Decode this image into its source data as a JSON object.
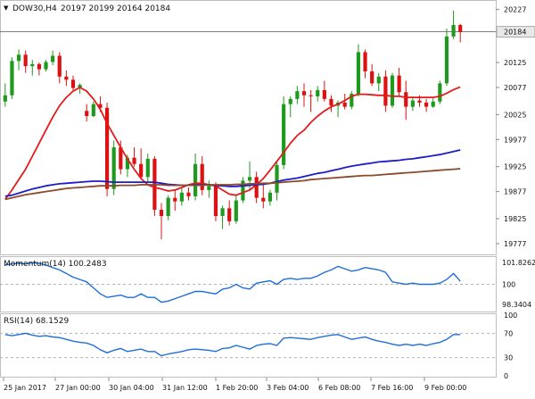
{
  "header": {
    "arrow_glyph": "▼",
    "symbol": "DOW30,H4",
    "ohlc": "20197 20199 20164 20184"
  },
  "colors": {
    "bull_candle": "#1e9a1e",
    "bear_candle": "#dd1111",
    "sma_fast": "#e31b1b",
    "sma_mid": "#1c1cc8",
    "sma_slow": "#8b4a2a",
    "indicator_line": "#1f6fd6",
    "grid_dashed": "#b4b4b4",
    "pane_separator": "#bfbfbf",
    "price_label_bg": "#e8e8e8",
    "text": "#111111"
  },
  "x_axis": {
    "labels": [
      "25 Jan 2017",
      "27 Jan 00:00",
      "30 Jan 04:00",
      "31 Jan 12:00",
      "1 Feb 20:00",
      "3 Feb 04:00",
      "6 Feb 08:00",
      "7 Feb 16:00",
      "9 Feb 00:00"
    ]
  },
  "price_pane": {
    "y_tick_labels": [
      "20227",
      "20184",
      "20125",
      "20077",
      "20025",
      "19977",
      "19925",
      "19877",
      "19825",
      "19777"
    ],
    "current_price_label": "20184",
    "current_price": 20184
  },
  "momentum_pane": {
    "title": "Momentum(14) 100.2483",
    "y_tick_labels": [
      "101.8262",
      "100",
      "98.3404"
    ]
  },
  "rsi_pane": {
    "title": "RSI(14) 68.1529",
    "y_tick_labels": [
      "100",
      "70",
      "30",
      "0"
    ]
  },
  "chart_data": [
    {
      "type": "candlestick",
      "title": "DOW30,H4",
      "ylim": [
        19758,
        20240
      ],
      "candles": [
        [
          20050,
          20085,
          20040,
          20062
        ],
        [
          20062,
          20135,
          20055,
          20128
        ],
        [
          20128,
          20150,
          20110,
          20140
        ],
        [
          20140,
          20148,
          20105,
          20118
        ],
        [
          20118,
          20130,
          20100,
          20122
        ],
        [
          20122,
          20125,
          20100,
          20112
        ],
        [
          20112,
          20130,
          20108,
          20126
        ],
        [
          20126,
          20148,
          20120,
          20138
        ],
        [
          20138,
          20145,
          20085,
          20098
        ],
        [
          20098,
          20110,
          20080,
          20092
        ],
        [
          20092,
          20100,
          20070,
          20076
        ],
        [
          20076,
          20085,
          20065,
          20082
        ],
        [
          20032,
          20045,
          20012,
          20022
        ],
        [
          20022,
          20050,
          20020,
          20045
        ],
        [
          20045,
          20060,
          20030,
          20038
        ],
        [
          20038,
          20048,
          19868,
          19882
        ],
        [
          19882,
          19975,
          19870,
          19962
        ],
        [
          19962,
          19975,
          19910,
          19920
        ],
        [
          19920,
          19948,
          19905,
          19942
        ],
        [
          19942,
          19962,
          19925,
          19930
        ],
        [
          19930,
          19960,
          19900,
          19905
        ],
        [
          19905,
          19950,
          19895,
          19940
        ],
        [
          19940,
          19945,
          19830,
          19842
        ],
        [
          19842,
          19855,
          19785,
          19830
        ],
        [
          19830,
          19870,
          19822,
          19865
        ],
        [
          19865,
          19880,
          19840,
          19858
        ],
        [
          19858,
          19885,
          19850,
          19875
        ],
        [
          19875,
          19885,
          19860,
          19868
        ],
        [
          19868,
          19950,
          19860,
          19930
        ],
        [
          19930,
          19945,
          19870,
          19880
        ],
        [
          19880,
          19898,
          19865,
          19888
        ],
        [
          19888,
          19895,
          19820,
          19830
        ],
        [
          19830,
          19850,
          19805,
          19845
        ],
        [
          19845,
          19860,
          19812,
          19820
        ],
        [
          19820,
          19870,
          19815,
          19860
        ],
        [
          19860,
          19905,
          19855,
          19898
        ],
        [
          19898,
          19935,
          19880,
          19905
        ],
        [
          19905,
          19915,
          19855,
          19865
        ],
        [
          19865,
          19890,
          19845,
          19858
        ],
        [
          19858,
          19880,
          19850,
          19875
        ],
        [
          19875,
          19935,
          19860,
          19928
        ],
        [
          19928,
          20060,
          19920,
          20045
        ],
        [
          20045,
          20060,
          20020,
          20055
        ],
        [
          20055,
          20080,
          20045,
          20070
        ],
        [
          20070,
          20085,
          20040,
          20062
        ],
        [
          20062,
          20072,
          20030,
          20060
        ],
        [
          20060,
          20080,
          20050,
          20072
        ],
        [
          20072,
          20090,
          20050,
          20055
        ],
        [
          20055,
          20062,
          20030,
          20042
        ],
        [
          20042,
          20052,
          20020,
          20048
        ],
        [
          20048,
          20065,
          20035,
          20040
        ],
        [
          20040,
          20070,
          20035,
          20065
        ],
        [
          20065,
          20160,
          20060,
          20145
        ],
        [
          20145,
          20150,
          20095,
          20108
        ],
        [
          20108,
          20122,
          20080,
          20085
        ],
        [
          20085,
          20105,
          20070,
          20098
        ],
        [
          20098,
          20110,
          20030,
          20042
        ],
        [
          20042,
          20105,
          20038,
          20100
        ],
        [
          20100,
          20115,
          20060,
          20068
        ],
        [
          20068,
          20090,
          20015,
          20040
        ],
        [
          20040,
          20060,
          20032,
          20052
        ],
        [
          20052,
          20062,
          20040,
          20048
        ],
        [
          20048,
          20055,
          20030,
          20040
        ],
        [
          20040,
          20058,
          20038,
          20050
        ],
        [
          20050,
          20090,
          20045,
          20085
        ],
        [
          20085,
          20190,
          20080,
          20175
        ],
        [
          20175,
          20225,
          20170,
          20197
        ],
        [
          20197,
          20199,
          20164,
          20184
        ]
      ],
      "series": [
        {
          "values": [
            19862,
            19880,
            19900,
            19920,
            19945,
            19970,
            19995,
            20020,
            20042,
            20058,
            20070,
            20077,
            20070,
            20055,
            20035,
            20008,
            19985,
            19962,
            19940,
            19920,
            19902,
            19890,
            19885,
            19882,
            19878,
            19880,
            19885,
            19890,
            19893,
            19893,
            19890,
            19888,
            19880,
            19872,
            19870,
            19875,
            19880,
            19890,
            19902,
            19918,
            19935,
            19952,
            19970,
            19985,
            19995,
            20010,
            20022,
            20032,
            20040,
            20045,
            20052,
            20060,
            20064,
            20064,
            20063,
            20062,
            20062,
            20060,
            20060,
            20058,
            20058,
            20058,
            20058,
            20058,
            20060,
            20066,
            20073,
            20078
          ]
        },
        {
          "values": [
            19868,
            19870,
            19874,
            19878,
            19882,
            19885,
            19888,
            19890,
            19892,
            19893,
            19894,
            19895,
            19896,
            19897,
            19897,
            19896,
            19895,
            19895,
            19895,
            19895,
            19895,
            19895,
            19895,
            19893,
            19891,
            19890,
            19889,
            19889,
            19890,
            19890,
            19890,
            19889,
            19888,
            19887,
            19887,
            19888,
            19889,
            19890,
            19891,
            19893,
            19896,
            19899,
            19901,
            19903,
            19906,
            19909,
            19912,
            19914,
            19917,
            19920,
            19923,
            19926,
            19928,
            19930,
            19932,
            19934,
            19935,
            19936,
            19937,
            19939,
            19940,
            19942,
            19944,
            19946,
            19948,
            19951,
            19954,
            19957
          ]
        },
        {
          "values": [
            19862,
            19865,
            19868,
            19871,
            19873,
            19875,
            19877,
            19879,
            19881,
            19883,
            19884,
            19885,
            19886,
            19887,
            19888,
            19888,
            19888,
            19889,
            19889,
            19889,
            19890,
            19890,
            19890,
            19890,
            19889,
            19889,
            19889,
            19889,
            19889,
            19889,
            19890,
            19890,
            19890,
            19890,
            19891,
            19891,
            19892,
            19892,
            19893,
            19893,
            19894,
            19895,
            19896,
            19897,
            19898,
            19900,
            19901,
            19902,
            19903,
            19904,
            19905,
            19906,
            19907,
            19908,
            19908,
            19909,
            19910,
            19911,
            19912,
            19913,
            19914,
            19915,
            19916,
            19917,
            19918,
            19919,
            19920,
            19921
          ]
        }
      ]
    },
    {
      "type": "line",
      "title": "Momentum(14) 100.2483",
      "ylim": [
        97.8,
        102.2
      ],
      "series": [
        {
          "name": "Momentum(14)",
          "values": [
            101.6,
            101.7,
            101.75,
            101.7,
            101.8,
            101.75,
            101.6,
            101.4,
            101.2,
            100.9,
            100.6,
            100.4,
            100.2,
            99.7,
            99.2,
            98.9,
            99.0,
            99.1,
            98.9,
            98.9,
            99.2,
            98.9,
            98.9,
            98.5,
            98.6,
            98.8,
            99.0,
            99.2,
            99.4,
            99.4,
            99.3,
            99.2,
            99.6,
            99.7,
            100.0,
            99.7,
            99.6,
            100.1,
            100.2,
            100.3,
            100.0,
            100.4,
            100.5,
            100.4,
            100.5,
            100.5,
            100.7,
            101.0,
            101.2,
            101.5,
            101.3,
            101.1,
            101.2,
            101.4,
            101.3,
            101.2,
            101.0,
            100.2,
            100.1,
            100.0,
            100.1,
            100.0,
            100.0,
            100.0,
            100.1,
            100.4,
            100.9,
            100.25
          ]
        }
      ]
    },
    {
      "type": "line",
      "title": "RSI(14) 68.1529",
      "ylim": [
        0,
        100
      ],
      "series": [
        {
          "name": "RSI(14)",
          "values": [
            68,
            66,
            68,
            70,
            67,
            65,
            66,
            64,
            63,
            60,
            57,
            55,
            54,
            50,
            43,
            38,
            42,
            45,
            40,
            42,
            44,
            40,
            40,
            33,
            36,
            38,
            40,
            43,
            44,
            43,
            42,
            40,
            45,
            46,
            50,
            47,
            44,
            50,
            52,
            53,
            50,
            62,
            63,
            62,
            61,
            60,
            63,
            65,
            67,
            68,
            64,
            60,
            62,
            64,
            60,
            57,
            55,
            52,
            50,
            52,
            50,
            52,
            50,
            53,
            55,
            60,
            68,
            68
          ]
        }
      ]
    }
  ]
}
